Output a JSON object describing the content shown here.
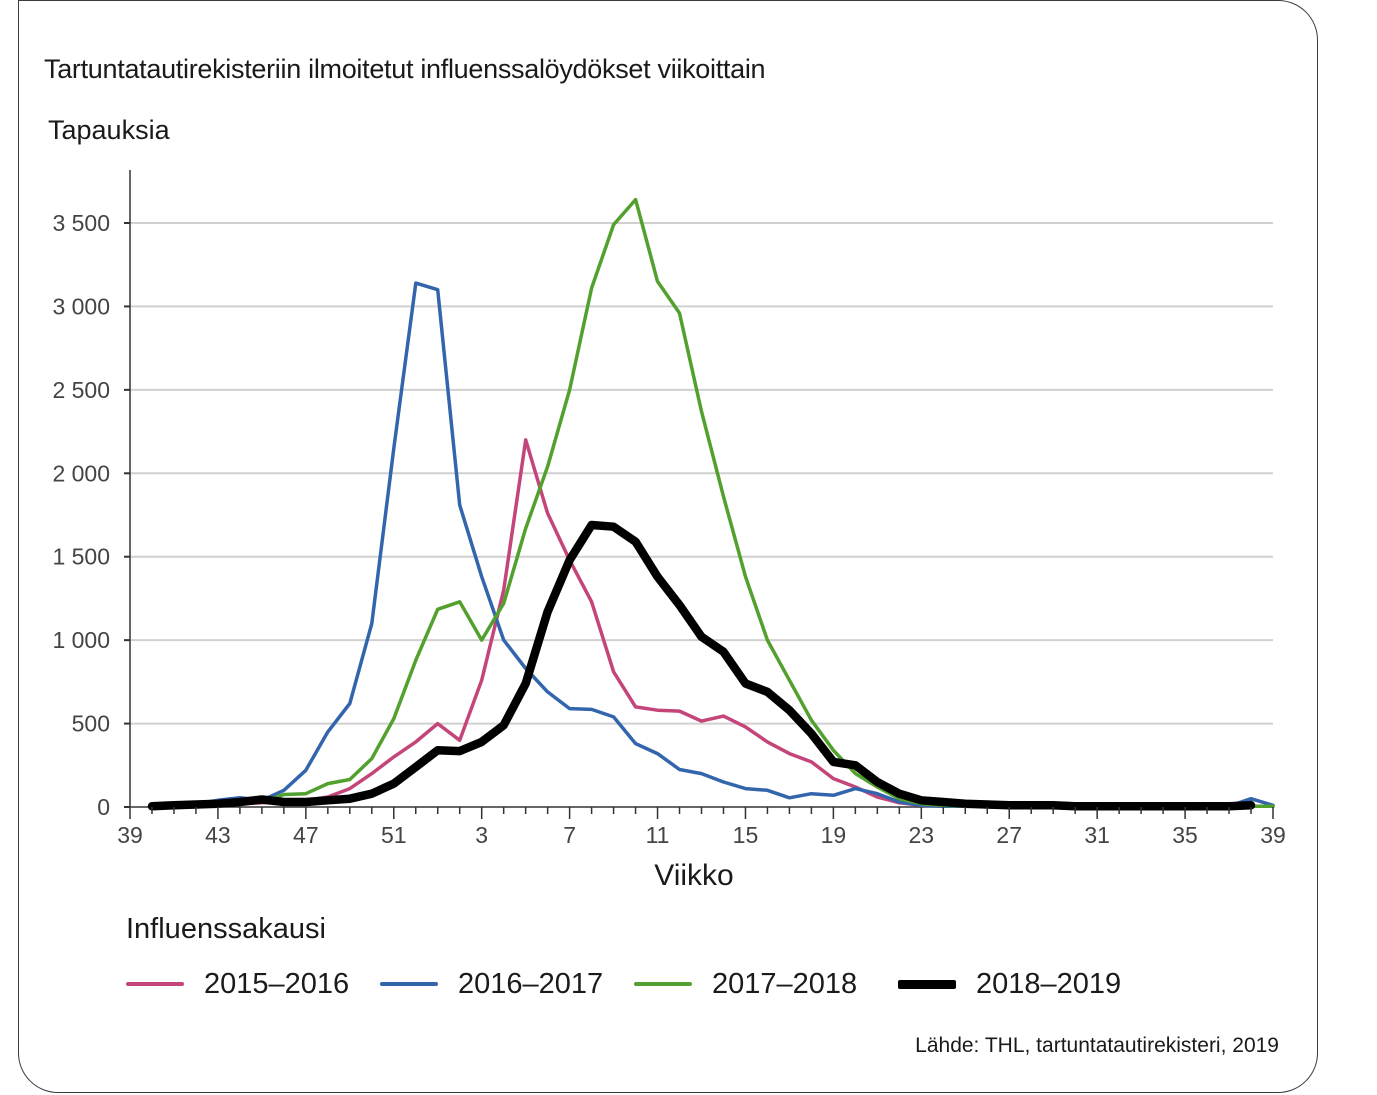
{
  "title": "Tartuntatautirekisteriin ilmoitetut influenssalöydökset viikoittain",
  "source": "Lähde: THL, tartuntatautirekisteri, 2019",
  "legend_title": "Influenssakausi",
  "chart_data": {
    "type": "line",
    "title": "Tartuntatautirekisteriin ilmoitetut influenssalöydökset viikoittain",
    "xlabel": "Viikko",
    "ylabel": "Tapauksia",
    "ylim": [
      0,
      3800
    ],
    "y_ticks": [
      0,
      500,
      1000,
      1500,
      2000,
      2500,
      3000,
      3500
    ],
    "y_tick_labels": [
      "0",
      "500",
      "1 000",
      "1 500",
      "2 000",
      "2 500",
      "3 000",
      "3 500"
    ],
    "x": [
      39,
      40,
      41,
      42,
      43,
      44,
      45,
      46,
      47,
      48,
      49,
      50,
      51,
      52,
      1,
      2,
      3,
      4,
      5,
      6,
      7,
      8,
      9,
      10,
      11,
      12,
      13,
      14,
      15,
      16,
      17,
      18,
      19,
      20,
      21,
      22,
      23,
      24,
      25,
      26,
      27,
      28,
      29,
      30,
      31,
      32,
      33,
      34,
      35,
      36,
      37,
      38,
      39
    ],
    "x_tick_labels": [
      "39",
      "43",
      "47",
      "51",
      "3",
      "7",
      "11",
      "15",
      "19",
      "23",
      "27",
      "31",
      "35",
      "39"
    ],
    "x_tick_every": 4,
    "grid": true,
    "legend_position": "bottom",
    "series": [
      {
        "name": "2015–2016",
        "color": "#c4457a",
        "values": [
          null,
          0,
          5,
          10,
          15,
          20,
          25,
          30,
          40,
          60,
          110,
          200,
          300,
          390,
          500,
          400,
          760,
          1300,
          2200,
          1760,
          1480,
          1230,
          810,
          600,
          580,
          575,
          515,
          545,
          480,
          390,
          320,
          270,
          170,
          120,
          60,
          25,
          10,
          5,
          5,
          5,
          5,
          5,
          5,
          5,
          5,
          5,
          5,
          5,
          5,
          5,
          5,
          5,
          5
        ]
      },
      {
        "name": "2016–2017",
        "color": "#3365ad",
        "values": [
          null,
          null,
          null,
          20,
          40,
          55,
          40,
          100,
          220,
          450,
          620,
          1100,
          2150,
          3140,
          3100,
          1810,
          1380,
          1000,
          830,
          690,
          590,
          585,
          540,
          380,
          320,
          225,
          200,
          150,
          110,
          100,
          55,
          80,
          70,
          110,
          80,
          30,
          10,
          5,
          5,
          5,
          5,
          5,
          5,
          5,
          5,
          5,
          5,
          5,
          5,
          5,
          5,
          50,
          10
        ]
      },
      {
        "name": "2017–2018",
        "color": "#52a02d",
        "values": [
          null,
          null,
          null,
          null,
          null,
          null,
          30,
          75,
          80,
          140,
          165,
          290,
          530,
          880,
          1185,
          1230,
          1000,
          1220,
          1670,
          2040,
          2500,
          3110,
          3490,
          3640,
          3150,
          2960,
          2370,
          1860,
          1380,
          1000,
          760,
          520,
          340,
          200,
          120,
          50,
          20,
          10,
          5,
          5,
          5,
          5,
          5,
          5,
          5,
          5,
          5,
          5,
          5,
          5,
          5,
          5,
          5
        ]
      },
      {
        "name": "2018–2019",
        "color": "#000000",
        "values": [
          null,
          5,
          10,
          15,
          20,
          30,
          45,
          30,
          30,
          40,
          50,
          80,
          140,
          240,
          340,
          335,
          390,
          490,
          740,
          1170,
          1480,
          1690,
          1680,
          1590,
          1380,
          1210,
          1020,
          930,
          740,
          690,
          580,
          440,
          270,
          250,
          150,
          80,
          40,
          30,
          20,
          15,
          10,
          10,
          10,
          5,
          5,
          5,
          5,
          5,
          5,
          5,
          5,
          10,
          null
        ]
      }
    ]
  }
}
